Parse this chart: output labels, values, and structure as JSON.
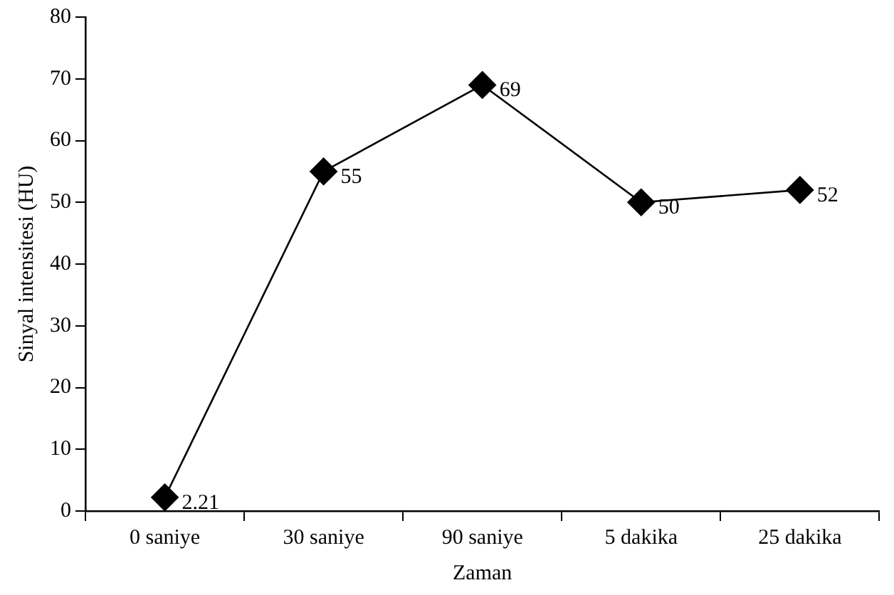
{
  "chart_data": {
    "type": "line",
    "xlabel": "Zaman",
    "ylabel": "Sinyal intensitesi (HU)",
    "categories": [
      "0 saniye",
      "30 saniye",
      "90 saniye",
      "5 dakika",
      "25 dakika"
    ],
    "series": [
      {
        "color": "#000000",
        "values": [
          2.21,
          55,
          69,
          50,
          52
        ]
      }
    ],
    "ylim": [
      0,
      80
    ],
    "yticks": [
      0,
      10,
      20,
      30,
      40,
      50,
      60,
      70,
      80
    ],
    "grid": false,
    "legend": false,
    "marker": "diamond",
    "line_style": "solid",
    "data_labels": true
  }
}
